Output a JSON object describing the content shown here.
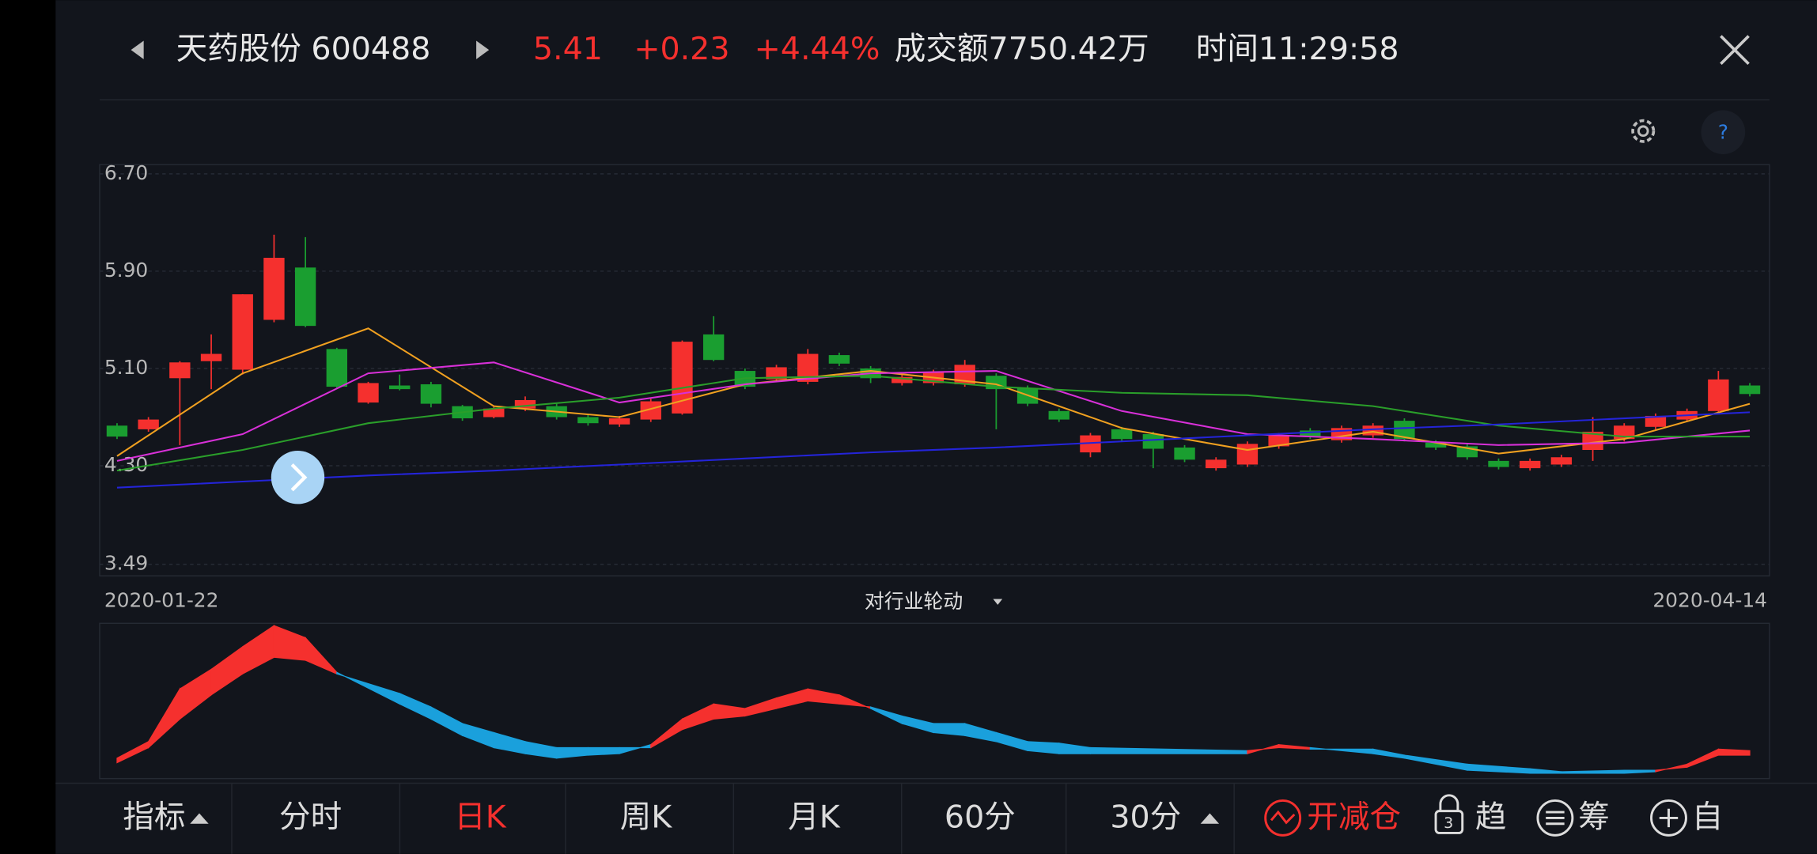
{
  "header": {
    "name": "天药股份 600488",
    "price": "5.41",
    "change": "+0.23",
    "pct": "+4.44%",
    "turnover": "成交额7750.42万",
    "time": "时间11:29:58"
  },
  "help": "?",
  "chart_data": {
    "type": "candlestick",
    "ylim": [
      3.49,
      6.7
    ],
    "yticks": [
      {
        "value": 6.7,
        "label": "6.70"
      },
      {
        "value": 5.9,
        "label": "5.90"
      },
      {
        "value": 5.1,
        "label": "5.10"
      },
      {
        "value": 4.3,
        "label": "4.30"
      },
      {
        "value": 3.49,
        "label": "3.49"
      }
    ],
    "grid": true,
    "start_date": "2020-01-22",
    "end_date": "2020-04-14",
    "up_color": "#f5302e",
    "down_color": "#1a9e30",
    "open": [
      4.63,
      4.6,
      5.02,
      5.16,
      5.09,
      5.5,
      5.93,
      5.26,
      4.82,
      4.96,
      4.97,
      4.79,
      4.7,
      4.77,
      4.79,
      4.7,
      4.64,
      4.68,
      4.73,
      5.38,
      5.08,
      5.01,
      4.99,
      5.21,
      5.1,
      4.98,
      4.98,
      4.97,
      5.04,
      4.94,
      4.75,
      4.41,
      4.6,
      4.56,
      4.45,
      4.28,
      4.31,
      4.46,
      4.59,
      4.51,
      4.55,
      4.67,
      4.49,
      4.46,
      4.34,
      4.28,
      4.31,
      4.43,
      4.52,
      4.62,
      4.68,
      4.75,
      4.96
    ],
    "high": [
      4.65,
      4.7,
      5.16,
      5.38,
      5.71,
      6.2,
      6.18,
      5.27,
      4.99,
      5.05,
      4.99,
      4.8,
      4.79,
      4.87,
      4.81,
      4.72,
      4.71,
      4.85,
      5.33,
      5.53,
      5.1,
      5.13,
      5.26,
      5.23,
      5.12,
      5.05,
      5.09,
      5.17,
      5.06,
      4.96,
      4.77,
      4.57,
      4.62,
      4.58,
      4.47,
      4.37,
      4.5,
      4.57,
      4.61,
      4.63,
      4.65,
      4.69,
      4.51,
      4.48,
      4.36,
      4.36,
      4.39,
      4.7,
      4.65,
      4.73,
      4.77,
      5.08,
      4.98
    ],
    "low": [
      4.52,
      4.58,
      4.47,
      4.93,
      5.05,
      5.48,
      5.44,
      4.94,
      4.81,
      4.92,
      4.78,
      4.67,
      4.69,
      4.75,
      4.68,
      4.63,
      4.62,
      4.66,
      4.72,
      5.16,
      4.93,
      4.99,
      4.97,
      5.12,
      4.98,
      4.96,
      4.96,
      4.95,
      4.6,
      4.79,
      4.66,
      4.37,
      4.5,
      4.28,
      4.33,
      4.26,
      4.29,
      4.44,
      4.52,
      4.49,
      4.53,
      4.5,
      4.43,
      4.35,
      4.27,
      4.26,
      4.29,
      4.34,
      4.5,
      4.6,
      4.66,
      4.73,
      4.87
    ],
    "close": [
      4.54,
      4.68,
      5.15,
      5.22,
      5.71,
      6.01,
      5.45,
      4.95,
      4.98,
      4.93,
      4.81,
      4.69,
      4.77,
      4.84,
      4.7,
      4.65,
      4.69,
      4.83,
      5.32,
      5.17,
      4.95,
      5.11,
      5.22,
      5.14,
      5.02,
      5.03,
      5.07,
      5.13,
      4.93,
      4.81,
      4.68,
      4.55,
      4.52,
      4.44,
      4.35,
      4.35,
      4.48,
      4.55,
      4.54,
      4.61,
      4.63,
      4.52,
      4.45,
      4.37,
      4.29,
      4.34,
      4.37,
      4.58,
      4.63,
      4.71,
      4.75,
      5.01,
      4.89
    ],
    "lines": [
      {
        "color": "#f0a020",
        "x": [
          0,
          4,
          8,
          12,
          16,
          20,
          24,
          28,
          32,
          36,
          40,
          44,
          48,
          52
        ],
        "values": [
          4.38,
          5.06,
          5.43,
          4.79,
          4.7,
          4.97,
          5.08,
          4.97,
          4.61,
          4.43,
          4.58,
          4.4,
          4.52,
          4.81
        ]
      },
      {
        "color": "#d830d8",
        "x": [
          0,
          4,
          8,
          12,
          16,
          20,
          24,
          28,
          32,
          36,
          40,
          44,
          48,
          52
        ],
        "values": [
          4.34,
          4.56,
          5.06,
          5.15,
          4.82,
          4.97,
          5.06,
          5.08,
          4.75,
          4.56,
          4.52,
          4.47,
          4.49,
          4.59
        ]
      },
      {
        "color": "#2a9e2a",
        "x": [
          0,
          4,
          8,
          12,
          16,
          20,
          24,
          28,
          32,
          36,
          40,
          44,
          48,
          52
        ],
        "values": [
          4.26,
          4.43,
          4.65,
          4.77,
          4.86,
          5.02,
          5.04,
          4.95,
          4.9,
          4.88,
          4.79,
          4.63,
          4.54,
          4.54
        ]
      },
      {
        "color": "#2424d8",
        "x": [
          0,
          4,
          8,
          12,
          16,
          20,
          24,
          28,
          32,
          36,
          40,
          44,
          48,
          52
        ],
        "values": [
          4.12,
          4.17,
          4.22,
          4.26,
          4.31,
          4.36,
          4.41,
          4.45,
          4.5,
          4.55,
          4.6,
          4.64,
          4.69,
          4.74
        ]
      }
    ]
  },
  "indicator_selector": "对行业轮动",
  "indicator": {
    "type": "band",
    "ylim": [
      0,
      100
    ],
    "up_color": "#f5302e",
    "down_color": "#1aa0dc",
    "x": [
      0,
      1,
      2,
      3,
      4,
      5,
      6,
      7,
      9,
      10,
      11,
      12,
      13,
      14,
      15,
      16,
      17,
      18,
      19,
      20,
      21,
      22,
      23,
      24,
      25,
      26,
      27,
      28,
      29,
      30,
      31,
      36,
      37,
      38,
      40,
      41,
      43,
      45,
      46,
      48,
      49,
      50,
      51,
      52
    ],
    "fast": [
      12,
      23,
      58,
      71,
      86,
      100,
      92,
      69,
      48,
      38,
      27,
      19,
      15,
      12,
      14,
      15,
      21,
      38,
      48,
      45,
      52,
      58,
      54,
      45,
      35,
      29,
      27,
      23,
      17,
      15,
      15,
      15,
      21,
      19,
      15,
      12,
      4,
      2,
      2,
      2,
      3,
      8,
      18,
      17
    ],
    "slow": [
      9,
      19,
      38,
      54,
      68,
      79,
      77,
      68,
      55,
      46,
      35,
      29,
      23,
      19,
      19,
      19,
      19,
      31,
      38,
      40,
      45,
      50,
      48,
      46,
      40,
      35,
      35,
      29,
      23,
      22,
      19,
      17,
      19,
      18,
      18,
      14,
      8,
      5,
      3,
      4,
      4,
      6,
      14,
      14
    ]
  },
  "tabs": [
    "指标",
    "分时",
    "日K",
    "周K",
    "月K",
    "60分",
    "30分",
    "开减仓",
    "趋",
    "筹",
    "自"
  ],
  "lock_badge": "3"
}
